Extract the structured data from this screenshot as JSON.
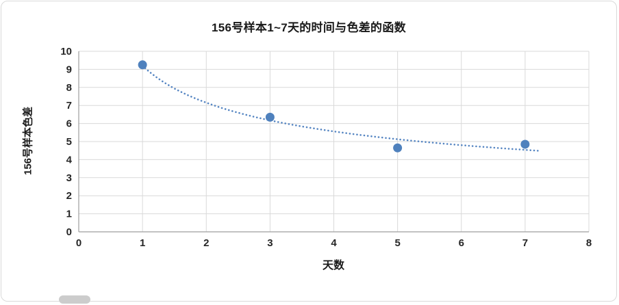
{
  "chart_data": {
    "type": "scatter",
    "title": "156号样本1~7天的时间与色差的函数",
    "xlabel": "天数",
    "ylabel": "156号样本色差",
    "xlim": [
      0,
      8
    ],
    "ylim": [
      0,
      10
    ],
    "x_ticks": [
      0,
      1,
      2,
      3,
      4,
      5,
      6,
      7,
      8
    ],
    "y_ticks": [
      0,
      1,
      2,
      3,
      4,
      5,
      6,
      7,
      8,
      9,
      10
    ],
    "grid": true,
    "legend": "none",
    "points": [
      {
        "x": 1,
        "y": 9.25
      },
      {
        "x": 3,
        "y": 6.35
      },
      {
        "x": 5,
        "y": 4.65
      },
      {
        "x": 7,
        "y": 4.85
      }
    ],
    "trendline": {
      "style": "dotted",
      "fit": "power",
      "a": 9.2,
      "b": -0.363,
      "x_range": [
        1,
        7.2
      ]
    },
    "colors": {
      "marker": "#4f81bd",
      "trendline": "#5585c2",
      "grid": "#d9d9d9",
      "axis": "#9e9e9e",
      "text": "#262626"
    }
  }
}
